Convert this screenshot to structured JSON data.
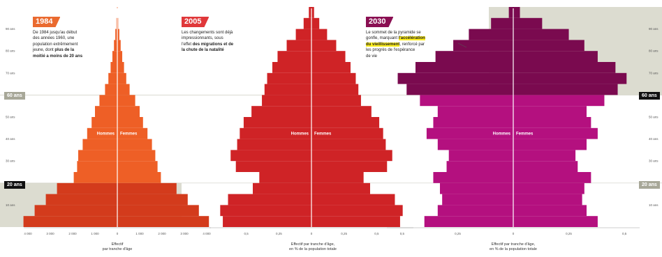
{
  "chart_data": [
    {
      "type": "area",
      "title": "1984",
      "description": "De 1984 jusqu'au début des années 1960, une population extrêmement jeune, dont plus de la moitié a moins de 20 ans",
      "text_parts": [
        "De 1984 jusqu'au début",
        "des années 1960, une",
        "population extrêmement",
        "jeune, dont ",
        "plus de la",
        "moitié a moins de 20 ans"
      ],
      "xlabel": "Effectif par tranche d'âge",
      "xlabel_lines": [
        "Effectif",
        "par tranche d'âge"
      ],
      "x_ticks": [
        "4 000",
        "3 000",
        "2 000",
        "1 000",
        "0",
        "1 000",
        "2 000",
        "3 000",
        "4 000"
      ],
      "x_max": 4000,
      "series": [
        {
          "name": "Hommes",
          "ages": [
            0,
            5,
            10,
            15,
            20,
            25,
            30,
            35,
            40,
            45,
            50,
            55,
            60,
            65,
            70,
            75,
            80,
            85,
            90,
            95
          ],
          "values": [
            4200,
            3700,
            3200,
            2700,
            1950,
            1800,
            1750,
            1550,
            1350,
            1150,
            1000,
            800,
            550,
            400,
            300,
            220,
            150,
            90,
            40,
            10
          ]
        },
        {
          "name": "Femmes",
          "ages": [
            0,
            5,
            10,
            15,
            20,
            25,
            30,
            35,
            40,
            45,
            50,
            55,
            60,
            65,
            70,
            75,
            80,
            85,
            90,
            95
          ],
          "values": [
            4100,
            3650,
            3150,
            2650,
            1950,
            1800,
            1700,
            1550,
            1350,
            1150,
            1000,
            800,
            550,
            400,
            300,
            220,
            150,
            90,
            40,
            10
          ]
        }
      ],
      "colors": {
        "under20": "#d33b1c",
        "over20": "#ee5f26",
        "badge": "#ea6a2f"
      }
    },
    {
      "type": "area",
      "title": "2005",
      "description": "Les changements sont déjà impressionnants, sous l'effet des migrations et de la chute de la natalité",
      "text_parts": [
        "Les changements sont déjà",
        "impressionnants, sous",
        "l'effet ",
        "des migrations et de",
        "la chute de la natalité"
      ],
      "xlabel": "Effectif par tranche d'âge, en % de la population totale",
      "xlabel_lines": [
        "Effectif par tranche d'âge,",
        "en % de la population totale"
      ],
      "x_ticks": [
        "0,5",
        "0,25",
        "0",
        "0,25",
        "0,5"
      ],
      "x_max": 0.75,
      "series": [
        {
          "name": "Hommes",
          "ages": [
            0,
            5,
            10,
            15,
            20,
            25,
            30,
            35,
            40,
            45,
            50,
            55,
            60,
            65,
            70,
            75,
            80,
            85,
            90,
            95
          ],
          "values": [
            0.68,
            0.7,
            0.64,
            0.45,
            0.4,
            0.58,
            0.62,
            0.57,
            0.55,
            0.52,
            0.46,
            0.38,
            0.36,
            0.34,
            0.3,
            0.26,
            0.19,
            0.12,
            0.06,
            0.02
          ]
        },
        {
          "name": "Femmes",
          "ages": [
            0,
            5,
            10,
            15,
            20,
            25,
            30,
            35,
            40,
            45,
            50,
            55,
            60,
            65,
            70,
            75,
            80,
            85,
            90,
            95
          ],
          "values": [
            0.68,
            0.7,
            0.64,
            0.45,
            0.4,
            0.58,
            0.62,
            0.57,
            0.55,
            0.52,
            0.46,
            0.38,
            0.36,
            0.34,
            0.3,
            0.26,
            0.19,
            0.12,
            0.06,
            0.02
          ]
        }
      ],
      "colors": {
        "under20": "#cf2326",
        "over20": "#cf2326",
        "badge": "#e0383a"
      }
    },
    {
      "type": "area",
      "title": "2030",
      "description": "Le sommet de la pyramide se gonfle, marquant l'accélération du vieillissement, renforcé par les progrès de l'espérance de vie",
      "text_parts": [
        "Le sommet de la pyramide se",
        "gonfle, marquant ",
        "l'accélération",
        "du vieillissement",
        ", renforcé par",
        "les progrès de l'espérance",
        "de vie"
      ],
      "xlabel": "Effectif par tranche d'âge, en % de la population totale",
      "xlabel_lines": [
        "Effectif par tranche d'âge,",
        "en % de la population totale"
      ],
      "x_ticks": [
        "0,5",
        "0,25",
        "0",
        "0,25",
        "0,5"
      ],
      "x_max": 0.55,
      "series": [
        {
          "name": "Hommes",
          "ages": [
            0,
            5,
            10,
            15,
            20,
            25,
            30,
            35,
            40,
            45,
            50,
            55,
            60,
            65,
            70,
            75,
            80,
            85,
            90,
            95
          ],
          "values": [
            0.4,
            0.34,
            0.32,
            0.33,
            0.36,
            0.3,
            0.29,
            0.34,
            0.39,
            0.36,
            0.34,
            0.42,
            0.48,
            0.52,
            0.44,
            0.35,
            0.27,
            0.2,
            0.1,
            0.02
          ]
        },
        {
          "name": "Femmes",
          "ages": [
            0,
            5,
            10,
            15,
            20,
            25,
            30,
            35,
            40,
            45,
            50,
            55,
            60,
            65,
            70,
            75,
            80,
            85,
            90,
            95
          ],
          "values": [
            0.38,
            0.33,
            0.31,
            0.32,
            0.35,
            0.29,
            0.28,
            0.33,
            0.38,
            0.35,
            0.33,
            0.41,
            0.47,
            0.51,
            0.46,
            0.38,
            0.32,
            0.25,
            0.13,
            0.03
          ]
        }
      ],
      "colors": {
        "under60": "#b4107f",
        "over60": "#7a0a4f",
        "badge": "#8a0f52"
      }
    }
  ],
  "age_axis": {
    "ticks": [
      "90 ans",
      "80 ans",
      "70 ans",
      "50 ans",
      "40 ans",
      "30 ans",
      "10 ans"
    ],
    "tick_values": [
      90,
      80,
      70,
      50,
      40,
      30,
      10
    ],
    "age_max": 100
  },
  "markers": {
    "age20": "20 ans",
    "age60": "60 ans"
  },
  "labels": {
    "hommes": "Hommes",
    "femmes": "Femmes"
  },
  "colors": {
    "band": "#dcdcd0",
    "marker_dark": "#111111",
    "marker_grey": "#a7a798",
    "highlight": "#ffef1f"
  }
}
